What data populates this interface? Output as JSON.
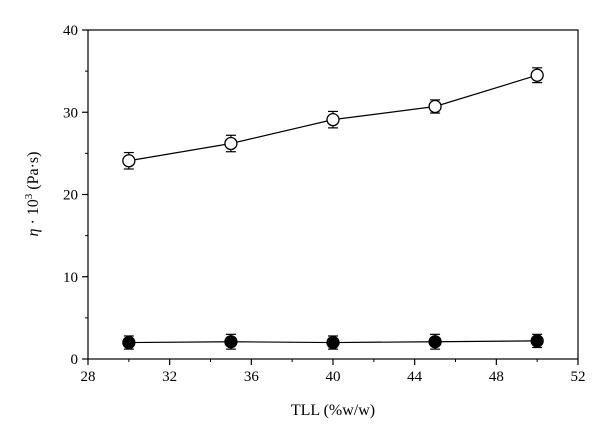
{
  "chart_data": {
    "type": "line",
    "title": "",
    "xlabel": "TLL (%w/w)",
    "ylabel": {
      "symbol": "η",
      "dot": " · ",
      "base": "10",
      "exponent": "3",
      "unit": " (Pa·s)"
    },
    "xlim": [
      28,
      52
    ],
    "ylim": [
      0,
      40
    ],
    "xticks": [
      28,
      32,
      36,
      40,
      44,
      48,
      52
    ],
    "yticks": [
      0,
      10,
      20,
      30,
      40
    ],
    "grid": false,
    "legend": "none",
    "series": [
      {
        "marker": "open-circle",
        "color": "#000000",
        "x": [
          30,
          35,
          40,
          45,
          50
        ],
        "y": [
          24.1,
          26.2,
          29.1,
          30.7,
          34.5
        ],
        "error": [
          1.0,
          1.0,
          1.0,
          0.8,
          0.9
        ]
      },
      {
        "marker": "filled-circle",
        "color": "#000000",
        "x": [
          30,
          35,
          40,
          45,
          50
        ],
        "y": [
          2.0,
          2.1,
          2.0,
          2.1,
          2.2
        ],
        "error": [
          0.8,
          0.9,
          0.8,
          0.9,
          0.8
        ]
      }
    ]
  }
}
